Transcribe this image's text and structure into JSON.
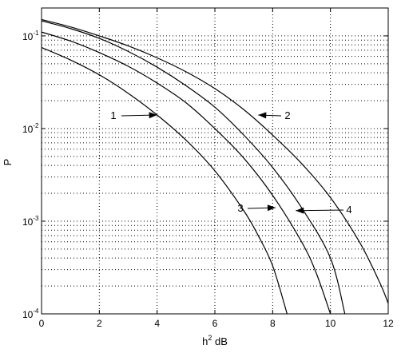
{
  "chart_data": {
    "type": "line",
    "title": "",
    "xlabel_base": "h",
    "xlabel_sup": "2",
    "xlabel_rest": " dB",
    "ylabel": "P",
    "xlim": [
      0,
      12
    ],
    "ylim": [
      0.0001,
      0.2
    ],
    "yscale": "log",
    "grid": "dotted",
    "x_ticks": [
      0,
      2,
      4,
      6,
      8,
      10,
      12
    ],
    "x_tick_labels": [
      "0",
      "2",
      "4",
      "6",
      "8",
      "10",
      "12"
    ],
    "y_ticks": [
      {
        "value": 0.1,
        "base": "10",
        "exp": "-1"
      },
      {
        "value": 0.01,
        "base": "10",
        "exp": "-2"
      },
      {
        "value": 0.001,
        "base": "10",
        "exp": "-3"
      },
      {
        "value": 0.0001,
        "base": "10",
        "exp": "-4"
      }
    ],
    "series": [
      {
        "label": "1",
        "x": [
          0,
          1,
          2,
          3,
          4,
          5,
          6,
          7,
          7.5,
          8,
          8.5
        ],
        "y": [
          0.075,
          0.055,
          0.038,
          0.024,
          0.014,
          0.0075,
          0.0035,
          0.0013,
          0.0007,
          0.00033,
          0.0001
        ]
      },
      {
        "label": "3",
        "x": [
          0,
          1,
          2,
          3,
          4,
          5,
          6,
          7,
          8,
          9,
          9.5,
          10
        ],
        "y": [
          0.11,
          0.088,
          0.066,
          0.047,
          0.031,
          0.019,
          0.01,
          0.0048,
          0.0019,
          0.0006,
          0.00028,
          0.0001
        ]
      },
      {
        "label": "4",
        "x": [
          0,
          1,
          2,
          3,
          4,
          5,
          6,
          7,
          8,
          9,
          10,
          10.5
        ],
        "y": [
          0.145,
          0.12,
          0.094,
          0.068,
          0.046,
          0.029,
          0.017,
          0.0085,
          0.0038,
          0.0014,
          0.0004,
          0.0001
        ]
      },
      {
        "label": "2",
        "x": [
          0,
          1,
          2,
          3,
          4,
          5,
          6,
          7,
          8,
          9,
          10,
          11,
          11.7,
          12
        ],
        "y": [
          0.15,
          0.125,
          0.1,
          0.078,
          0.058,
          0.041,
          0.027,
          0.016,
          0.0085,
          0.0042,
          0.0018,
          0.0006,
          0.00022,
          0.00013
        ]
      }
    ],
    "annotations": [
      {
        "text": "1",
        "points_to_series": "1",
        "target": {
          "x": 4,
          "y": 0.014
        }
      },
      {
        "text": "2",
        "points_to_series": "2",
        "target": {
          "x": 7.5,
          "y": 0.014
        }
      },
      {
        "text": "3",
        "points_to_series": "3",
        "target": {
          "x": 8.1,
          "y": 0.0014
        }
      },
      {
        "text": "4",
        "points_to_series": "4",
        "target": {
          "x": 8.8,
          "y": 0.0013
        }
      }
    ]
  }
}
